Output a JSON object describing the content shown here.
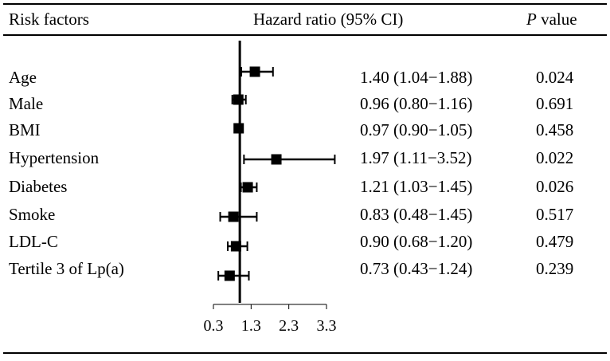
{
  "header": {
    "col_factor": "Risk factors",
    "col_hr": "Hazard ratio (95% CI)",
    "col_p_italic": "P",
    "col_p_rest": " value"
  },
  "rows": [
    {
      "factor": "Age",
      "ci_text": "1.40 (1.04−1.88)",
      "p": "0.024"
    },
    {
      "factor": "Male",
      "ci_text": "0.96 (0.80−1.16)",
      "p": "0.691"
    },
    {
      "factor": "BMI",
      "ci_text": "0.97 (0.90−1.05)",
      "p": "0.458"
    },
    {
      "factor": "Hypertension",
      "ci_text": "1.97 (1.11−3.52)",
      "p": "0.022"
    },
    {
      "factor": "Diabetes",
      "ci_text": "1.21 (1.03−1.45)",
      "p": "0.026"
    },
    {
      "factor": "Smoke",
      "ci_text": "0.83 (0.48−1.45)",
      "p": "0.517"
    },
    {
      "factor": "LDL-C",
      "ci_text": "0.90 (0.68−1.20)",
      "p": "0.479"
    },
    {
      "factor": "Tertile 3 of Lp(a)",
      "ci_text": "0.73 (0.43−1.24)",
      "p": "0.239"
    }
  ],
  "chart_data": {
    "type": "forest",
    "title": "",
    "xlabel": "",
    "ylabel": "Hazard ratio (95% CI)",
    "categories": [
      "Age",
      "Male",
      "BMI",
      "Hypertension",
      "Diabetes",
      "Smoke",
      "LDL-C",
      "Tertile 3 of Lp(a)"
    ],
    "hr": [
      1.4,
      0.96,
      0.97,
      1.97,
      1.21,
      0.83,
      0.9,
      0.73
    ],
    "ci_low": [
      1.04,
      0.8,
      0.9,
      1.11,
      1.03,
      0.48,
      0.68,
      0.43
    ],
    "ci_high": [
      1.88,
      1.16,
      1.05,
      3.52,
      1.45,
      1.45,
      1.2,
      1.24
    ],
    "reference_line": 1.0,
    "xlim": [
      0.3,
      3.3
    ],
    "xticks": [
      0.3,
      1.3,
      2.3,
      3.3
    ],
    "xtick_labels": [
      "0.3",
      "1.3",
      "2.3",
      "3.3"
    ],
    "grid": false,
    "legend": "none"
  }
}
